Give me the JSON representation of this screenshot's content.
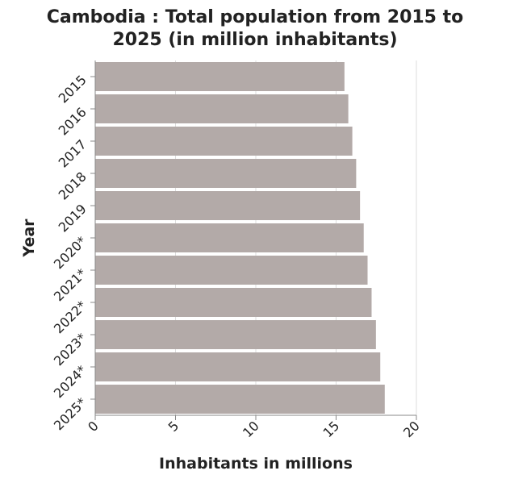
{
  "chart_data": {
    "type": "bar",
    "orientation": "horizontal",
    "title": [
      "Cambodia : Total population from 2015 to",
      "2025 (in million inhabitants)"
    ],
    "xlabel": "Inhabitants in millions",
    "ylabel": "Year",
    "categories": [
      "2015",
      "2016",
      "2017",
      "2018",
      "2019",
      "2020*",
      "2021*",
      "2022*",
      "2023*",
      "2024*",
      "2025*"
    ],
    "values": [
      15.52,
      15.76,
      16.01,
      16.25,
      16.49,
      16.72,
      16.96,
      17.21,
      17.48,
      17.75,
      18.03
    ],
    "xlim": [
      0,
      20
    ],
    "xticks": [
      "0",
      "5",
      "10",
      "15",
      "20"
    ],
    "bar_color": "#b3aaa8",
    "grid": true
  }
}
